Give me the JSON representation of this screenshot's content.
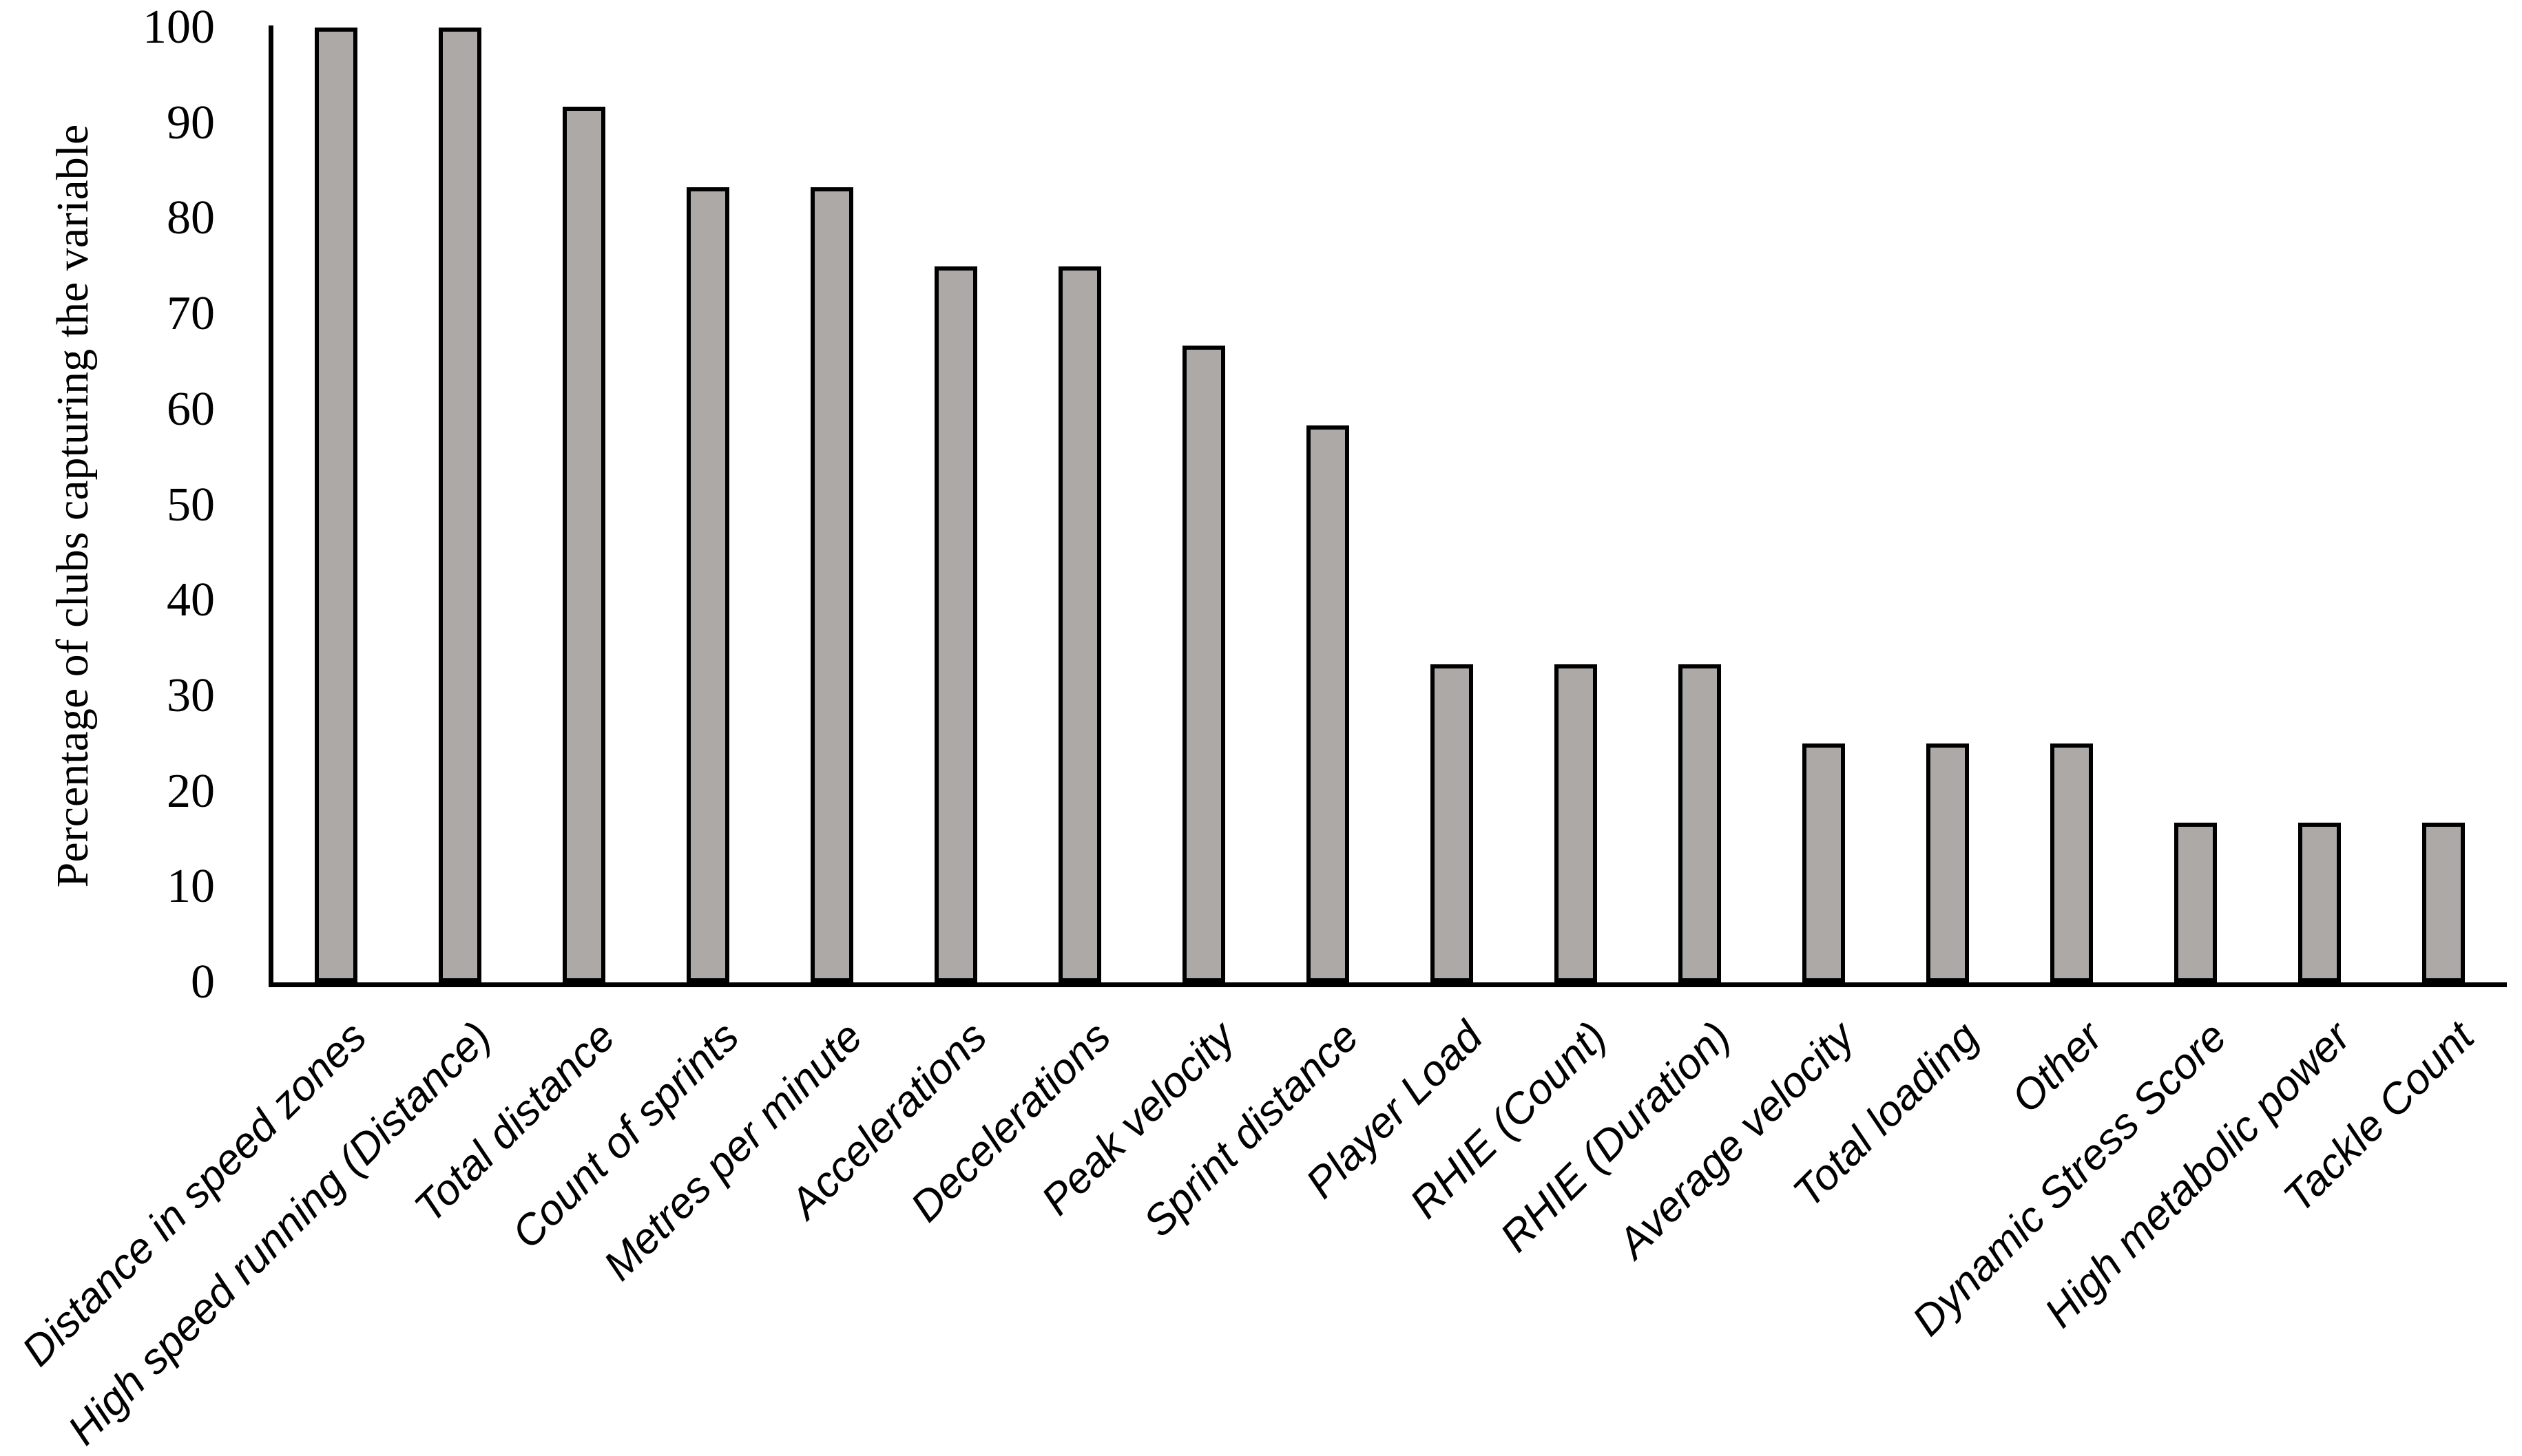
{
  "chart_data": {
    "type": "bar",
    "title": "",
    "xlabel": "",
    "ylabel": "Percentage of clubs capturing the variable",
    "categories": [
      "Distance in speed zones",
      "High speed running (Distance)",
      "Total distance",
      "Count of sprints",
      "Metres per minute",
      "Accelerations",
      "Decelerations",
      "Peak velocity",
      "Sprint distance",
      "Player Load",
      "RHIE (Count)",
      "RHIE (Duration)",
      "Average velocity",
      "Total loading",
      "Other",
      "Dynamic Stress Score",
      "High metabolic power",
      "Tackle Count"
    ],
    "values": [
      100,
      100,
      91.7,
      83.3,
      83.3,
      75,
      75,
      66.7,
      58.3,
      33.3,
      33.3,
      33.3,
      25,
      25,
      25,
      16.7,
      16.7,
      16.7
    ],
    "yticks": [
      0,
      10,
      20,
      30,
      40,
      50,
      60,
      70,
      80,
      90,
      100
    ],
    "ylim": [
      0,
      100
    ],
    "grid": false,
    "legend": "none",
    "xlabel_rotation_deg": 45,
    "bar_fill_color": "#ADA9A7",
    "bar_border_color": "#000000",
    "axis_color": "#000000",
    "text_color": "#000000"
  }
}
